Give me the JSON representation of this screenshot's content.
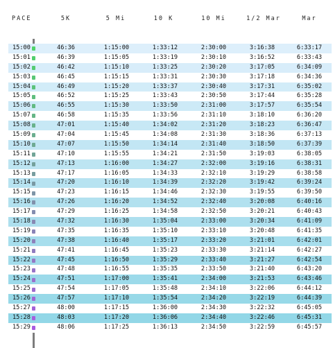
{
  "headers": [
    "PACE",
    "5K",
    "5 Mi",
    "10 K",
    "10 Mi",
    "1/2 Mar",
    "Mar"
  ],
  "rows": [
    [
      "15:00",
      "46:36",
      "1:15:00",
      "1:33:12",
      "2:30:00",
      "3:16:38",
      "6:33:17"
    ],
    [
      "15:01",
      "46:39",
      "1:15:05",
      "1:33:19",
      "2:30:10",
      "3:16:52",
      "6:33:43"
    ],
    [
      "15:02",
      "46:42",
      "1:15:10",
      "1:33:25",
      "2:30:20",
      "3:17:05",
      "6:34:09"
    ],
    [
      "15:03",
      "46:45",
      "1:15:15",
      "1:33:31",
      "2:30:30",
      "3:17:18",
      "6:34:36"
    ],
    [
      "15:04",
      "46:49",
      "1:15:20",
      "1:33:37",
      "2:30:40",
      "3:17:31",
      "6:35:02"
    ],
    [
      "15:05",
      "46:52",
      "1:15:25",
      "1:33:43",
      "2:30:50",
      "3:17:44",
      "6:35:28"
    ],
    [
      "15:06",
      "46:55",
      "1:15:30",
      "1:33:50",
      "2:31:00",
      "3:17:57",
      "6:35:54"
    ],
    [
      "15:07",
      "46:58",
      "1:15:35",
      "1:33:56",
      "2:31:10",
      "3:18:10",
      "6:36:20"
    ],
    [
      "15:08",
      "47:01",
      "1:15:40",
      "1:34:02",
      "2:31:20",
      "3:18:23",
      "6:36:47"
    ],
    [
      "15:09",
      "47:04",
      "1:15:45",
      "1:34:08",
      "2:31:30",
      "3:18:36",
      "6:37:13"
    ],
    [
      "15:10",
      "47:07",
      "1:15:50",
      "1:34:14",
      "2:31:40",
      "3:18:50",
      "6:37:39"
    ],
    [
      "15:11",
      "47:10",
      "1:15:55",
      "1:34:21",
      "2:31:50",
      "3:19:03",
      "6:38:05"
    ],
    [
      "15:12",
      "47:13",
      "1:16:00",
      "1:34:27",
      "2:32:00",
      "3:19:16",
      "6:38:31"
    ],
    [
      "15:13",
      "47:17",
      "1:16:05",
      "1:34:33",
      "2:32:10",
      "3:19:29",
      "6:38:58"
    ],
    [
      "15:14",
      "47:20",
      "1:16:10",
      "1:34:39",
      "2:32:20",
      "3:19:42",
      "6:39:24"
    ],
    [
      "15:15",
      "47:23",
      "1:16:15",
      "1:34:46",
      "2:32:30",
      "3:19:55",
      "6:39:50"
    ],
    [
      "15:16",
      "47:26",
      "1:16:20",
      "1:34:52",
      "2:32:40",
      "3:20:08",
      "6:40:16"
    ],
    [
      "15:17",
      "47:29",
      "1:16:25",
      "1:34:58",
      "2:32:50",
      "3:20:21",
      "6:40:43"
    ],
    [
      "15:18",
      "47:32",
      "1:16:30",
      "1:35:04",
      "2:33:00",
      "3:20:34",
      "6:41:09"
    ],
    [
      "15:19",
      "47:35",
      "1:16:35",
      "1:35:10",
      "2:33:10",
      "3:20:48",
      "6:41:35"
    ],
    [
      "15:20",
      "47:38",
      "1:16:40",
      "1:35:17",
      "2:33:20",
      "3:21:01",
      "6:42:01"
    ],
    [
      "15:21",
      "47:41",
      "1:16:45",
      "1:35:23",
      "2:33:30",
      "3:21:14",
      "6:42:27"
    ],
    [
      "15:22",
      "47:45",
      "1:16:50",
      "1:35:29",
      "2:33:40",
      "3:21:27",
      "6:42:54"
    ],
    [
      "15:23",
      "47:48",
      "1:16:55",
      "1:35:35",
      "2:33:50",
      "3:21:40",
      "6:43:20"
    ],
    [
      "15:24",
      "47:51",
      "1:17:00",
      "1:35:41",
      "2:34:00",
      "3:21:53",
      "6:43:46"
    ],
    [
      "15:25",
      "47:54",
      "1:17:05",
      "1:35:48",
      "2:34:10",
      "3:22:06",
      "6:44:12"
    ],
    [
      "15:26",
      "47:57",
      "1:17:10",
      "1:35:54",
      "2:34:20",
      "3:22:19",
      "6:44:39"
    ],
    [
      "15:27",
      "48:00",
      "1:17:15",
      "1:36:00",
      "2:34:30",
      "3:22:32",
      "6:45:05"
    ],
    [
      "15:28",
      "48:03",
      "1:17:20",
      "1:36:06",
      "2:34:40",
      "3:22:46",
      "6:45:31"
    ],
    [
      "15:29",
      "48:06",
      "1:17:25",
      "1:36:13",
      "2:34:50",
      "3:22:59",
      "6:45:57"
    ]
  ],
  "colors": {
    "stripe_start": "#ddeffb",
    "stripe_end": "#8fd6e6",
    "marker_start": "#4fd36a",
    "marker_end": "#a95be0",
    "track": "#7d7d7d"
  }
}
